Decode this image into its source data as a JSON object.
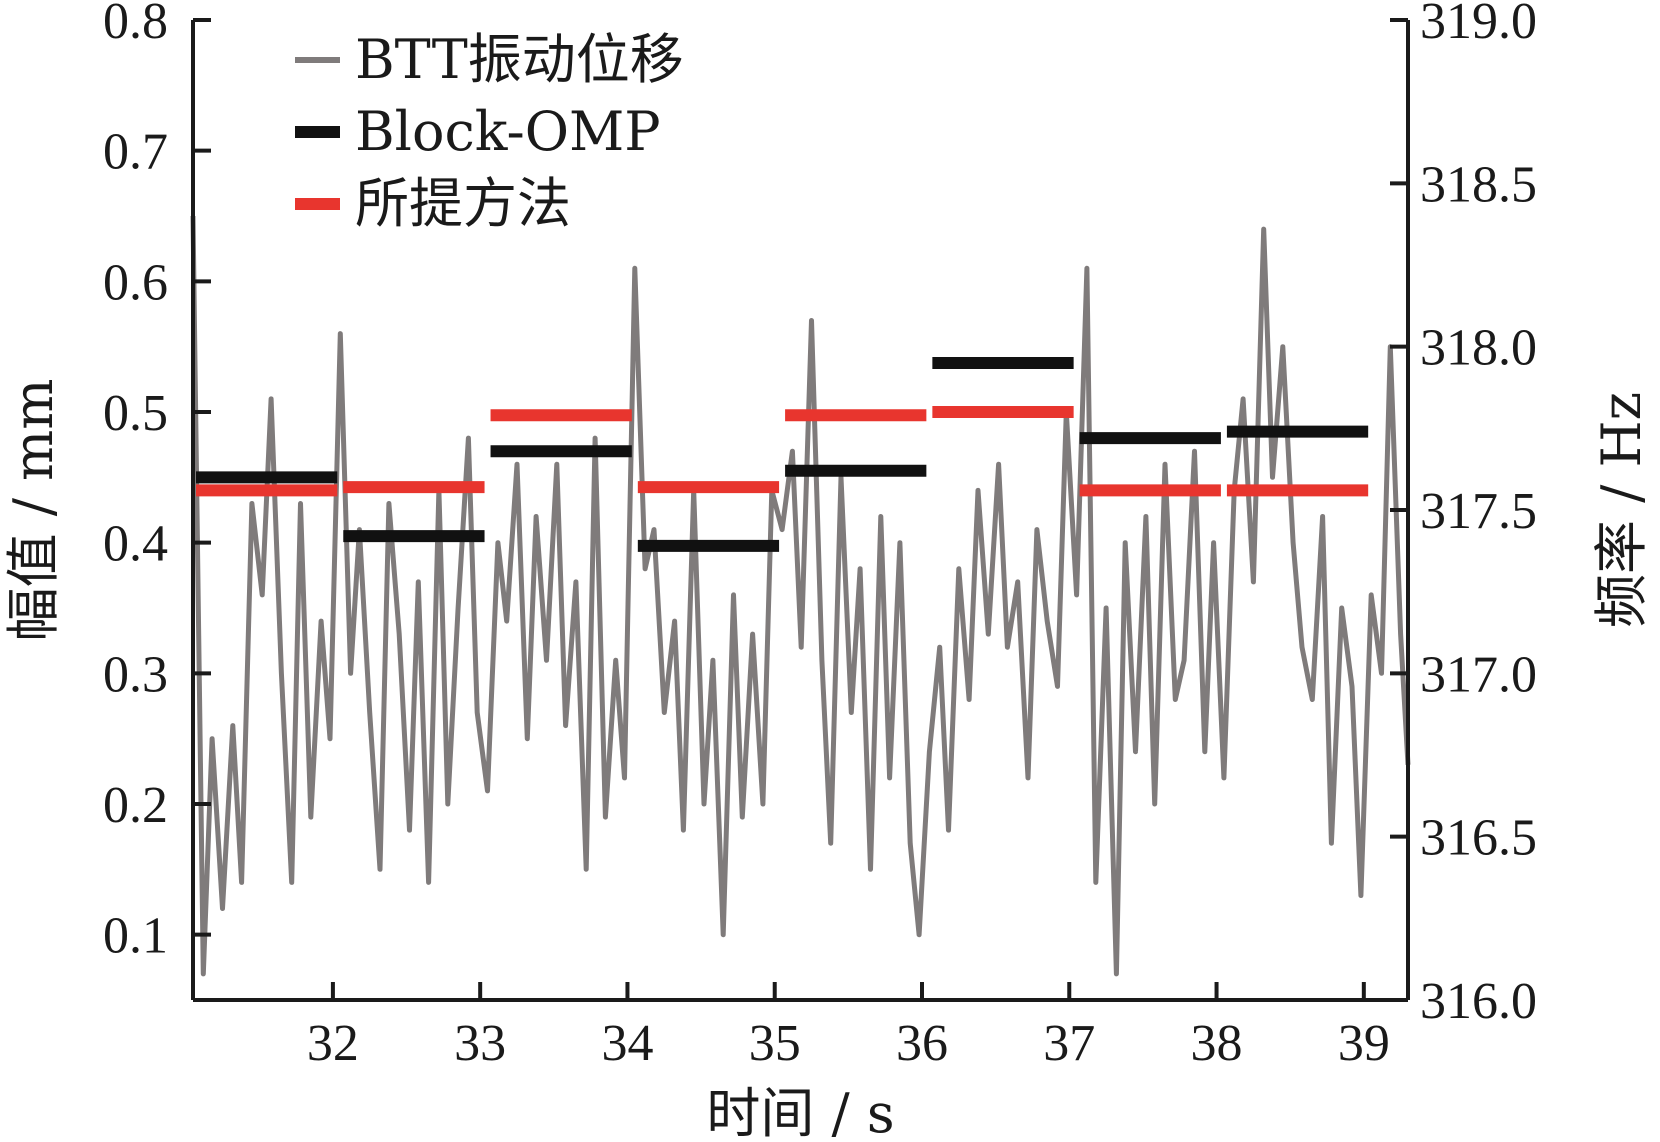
{
  "chart_data": {
    "type": "line",
    "xlabel": "时间 / s",
    "ylabel_left": "幅值 / mm",
    "ylabel_right": "频率 / Hz",
    "xlim": [
      31.05,
      39.3
    ],
    "xticks": [
      32,
      33,
      34,
      35,
      36,
      37,
      38,
      39
    ],
    "ylim_left": [
      0.05,
      0.8
    ],
    "yticks_left": [
      "0.1",
      "0.2",
      "0.3",
      "0.4",
      "0.5",
      "0.6",
      "0.7",
      "0.8"
    ],
    "ylim_right": [
      316.0,
      319.0
    ],
    "yticks_right": [
      "316.0",
      "316.5",
      "317.0",
      "317.5",
      "318.0",
      "318.5",
      "319.0"
    ],
    "legend_position": "top-left",
    "legend": [
      "BTT振动位移",
      "Block-OMP",
      "所提方法"
    ],
    "colors": {
      "btt": "#7f7b7b",
      "block_omp": "#111111",
      "proposed": "#e8352e",
      "axis": "#1a1a1a"
    },
    "series": [
      {
        "name": "BTT振动位移",
        "axis": "left",
        "x": [
          31.05,
          31.12,
          31.18,
          31.25,
          31.32,
          31.38,
          31.45,
          31.52,
          31.58,
          31.65,
          31.72,
          31.78,
          31.85,
          31.92,
          31.98,
          32.05,
          32.12,
          32.18,
          32.25,
          32.32,
          32.38,
          32.45,
          32.52,
          32.58,
          32.65,
          32.72,
          32.78,
          32.85,
          32.92,
          32.98,
          33.05,
          33.12,
          33.18,
          33.25,
          33.32,
          33.38,
          33.45,
          33.52,
          33.58,
          33.65,
          33.72,
          33.78,
          33.85,
          33.92,
          33.98,
          34.05,
          34.12,
          34.18,
          34.25,
          34.32,
          34.38,
          34.45,
          34.52,
          34.58,
          34.65,
          34.72,
          34.78,
          34.85,
          34.92,
          34.98,
          35.05,
          35.12,
          35.18,
          35.25,
          35.32,
          35.38,
          35.45,
          35.52,
          35.58,
          35.65,
          35.72,
          35.78,
          35.85,
          35.92,
          35.98,
          36.05,
          36.12,
          36.18,
          36.25,
          36.32,
          36.38,
          36.45,
          36.52,
          36.58,
          36.65,
          36.72,
          36.78,
          36.85,
          36.92,
          36.98,
          37.05,
          37.12,
          37.18,
          37.25,
          37.32,
          37.38,
          37.45,
          37.52,
          37.58,
          37.65,
          37.72,
          37.78,
          37.85,
          37.92,
          37.98,
          38.05,
          38.12,
          38.18,
          38.25,
          38.32,
          38.38,
          38.45,
          38.52,
          38.58,
          38.65,
          38.72,
          38.78,
          38.85,
          38.92,
          38.98,
          39.05,
          39.12,
          39.18,
          39.25,
          39.3
        ],
        "values": [
          0.65,
          0.07,
          0.25,
          0.12,
          0.26,
          0.14,
          0.43,
          0.36,
          0.51,
          0.3,
          0.14,
          0.43,
          0.19,
          0.34,
          0.25,
          0.56,
          0.3,
          0.41,
          0.27,
          0.15,
          0.43,
          0.33,
          0.18,
          0.37,
          0.14,
          0.44,
          0.2,
          0.35,
          0.48,
          0.27,
          0.21,
          0.4,
          0.34,
          0.46,
          0.25,
          0.42,
          0.31,
          0.46,
          0.26,
          0.37,
          0.15,
          0.48,
          0.19,
          0.31,
          0.22,
          0.61,
          0.38,
          0.41,
          0.27,
          0.34,
          0.18,
          0.44,
          0.2,
          0.31,
          0.1,
          0.36,
          0.19,
          0.33,
          0.2,
          0.44,
          0.41,
          0.47,
          0.32,
          0.57,
          0.31,
          0.17,
          0.45,
          0.27,
          0.38,
          0.15,
          0.42,
          0.22,
          0.4,
          0.17,
          0.1,
          0.24,
          0.32,
          0.18,
          0.38,
          0.28,
          0.44,
          0.33,
          0.46,
          0.32,
          0.37,
          0.22,
          0.41,
          0.34,
          0.29,
          0.5,
          0.36,
          0.61,
          0.14,
          0.35,
          0.07,
          0.4,
          0.24,
          0.42,
          0.2,
          0.46,
          0.28,
          0.31,
          0.47,
          0.24,
          0.4,
          0.22,
          0.44,
          0.51,
          0.37,
          0.64,
          0.45,
          0.55,
          0.4,
          0.32,
          0.28,
          0.42,
          0.17,
          0.35,
          0.29,
          0.13,
          0.36,
          0.3,
          0.55,
          0.33,
          0.23
        ]
      },
      {
        "name": "Block-OMP",
        "axis": "right",
        "segments": [
          {
            "x0": 31.05,
            "x1": 32.05,
            "value": 317.6
          },
          {
            "x0": 32.05,
            "x1": 33.05,
            "value": 317.42
          },
          {
            "x0": 33.05,
            "x1": 34.05,
            "value": 317.68
          },
          {
            "x0": 34.05,
            "x1": 35.05,
            "value": 317.39
          },
          {
            "x0": 35.05,
            "x1": 36.05,
            "value": 317.62
          },
          {
            "x0": 36.05,
            "x1": 37.05,
            "value": 317.95
          },
          {
            "x0": 37.05,
            "x1": 38.05,
            "value": 317.72
          },
          {
            "x0": 38.05,
            "x1": 39.05,
            "value": 317.74
          }
        ]
      },
      {
        "name": "所提方法",
        "axis": "right",
        "segments": [
          {
            "x0": 31.05,
            "x1": 32.05,
            "value": 317.56
          },
          {
            "x0": 32.05,
            "x1": 33.05,
            "value": 317.57
          },
          {
            "x0": 33.05,
            "x1": 34.05,
            "value": 317.79
          },
          {
            "x0": 34.05,
            "x1": 35.05,
            "value": 317.57
          },
          {
            "x0": 35.05,
            "x1": 36.05,
            "value": 317.79
          },
          {
            "x0": 36.05,
            "x1": 37.05,
            "value": 317.8
          },
          {
            "x0": 37.05,
            "x1": 38.05,
            "value": 317.56
          },
          {
            "x0": 38.05,
            "x1": 39.05,
            "value": 317.56
          }
        ]
      }
    ]
  }
}
